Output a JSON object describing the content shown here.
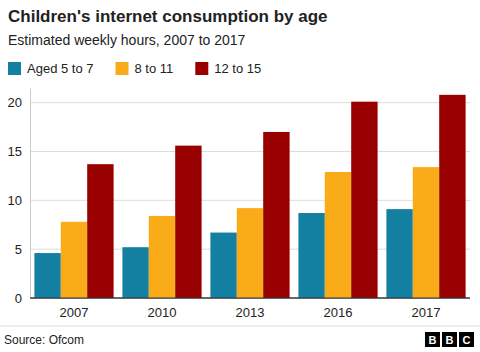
{
  "chart_data": {
    "type": "bar",
    "title": "Children's internet consumption by age",
    "subtitle": "Estimated weekly hours, 2007 to 2017",
    "source": "Source: Ofcom",
    "logo": "BBC",
    "categories": [
      "2007",
      "2010",
      "2013",
      "2016",
      "2017"
    ],
    "series": [
      {
        "name": "Aged 5 to 7",
        "color": "#1380a1",
        "values": [
          4.6,
          5.2,
          6.7,
          8.7,
          9.1
        ]
      },
      {
        "name": "8 to 11",
        "color": "#faab18",
        "values": [
          7.8,
          8.4,
          9.2,
          12.9,
          13.4
        ]
      },
      {
        "name": "12 to 15",
        "color": "#990000",
        "values": [
          13.7,
          15.6,
          17.0,
          20.1,
          20.8
        ]
      }
    ],
    "ylim": [
      0,
      21.5
    ],
    "yticks": [
      0,
      5,
      10,
      15,
      20
    ],
    "grid": true,
    "legend": "top-left"
  }
}
